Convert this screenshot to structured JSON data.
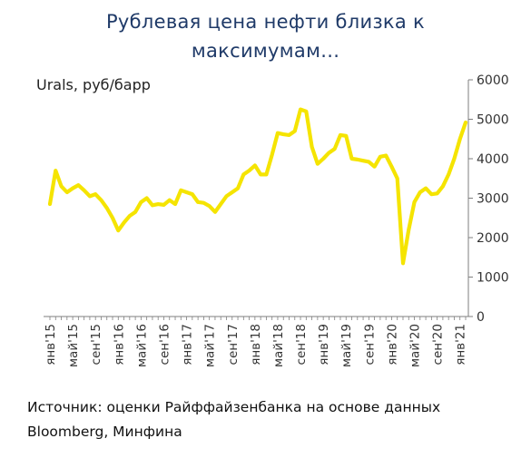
{
  "chart_data": {
    "type": "line",
    "title_lines": [
      "Рублевая цена нефти близка к",
      "максимумам..."
    ],
    "ylabel": "Urals, руб/барр",
    "xlabel": "",
    "ylim": [
      0,
      6000
    ],
    "yticks": [
      0,
      1000,
      2000,
      3000,
      4000,
      5000,
      6000
    ],
    "grid": false,
    "line_color": "#f5e400",
    "x_tick_labels": [
      {
        "index": 0,
        "label": "янв'15"
      },
      {
        "index": 4,
        "label": "май'15"
      },
      {
        "index": 8,
        "label": "сен'15"
      },
      {
        "index": 12,
        "label": "янв'16"
      },
      {
        "index": 16,
        "label": "май'16"
      },
      {
        "index": 20,
        "label": "сен'16"
      },
      {
        "index": 24,
        "label": "янв'17"
      },
      {
        "index": 28,
        "label": "май'17"
      },
      {
        "index": 32,
        "label": "сен'17"
      },
      {
        "index": 36,
        "label": "янв'18"
      },
      {
        "index": 40,
        "label": "май'18"
      },
      {
        "index": 44,
        "label": "сен'18"
      },
      {
        "index": 48,
        "label": "янв'19"
      },
      {
        "index": 52,
        "label": "май'19"
      },
      {
        "index": 56,
        "label": "сен'19"
      },
      {
        "index": 60,
        "label": "янв'20"
      },
      {
        "index": 64,
        "label": "май'20"
      },
      {
        "index": 68,
        "label": "сен'20"
      },
      {
        "index": 72,
        "label": "янв'21"
      }
    ],
    "series": [
      {
        "values": [
          2850,
          3700,
          3300,
          3150,
          3250,
          3330,
          3200,
          3050,
          3100,
          2950,
          2750,
          2500,
          2180,
          2380,
          2550,
          2650,
          2900,
          3000,
          2820,
          2850,
          2830,
          2950,
          2850,
          3200,
          3150,
          3100,
          2900,
          2880,
          2800,
          2650,
          2850,
          3050,
          3150,
          3250,
          3600,
          3700,
          3830,
          3600,
          3600,
          4100,
          4650,
          4620,
          4600,
          4700,
          5250,
          5200,
          4300,
          3870,
          4000,
          4150,
          4250,
          4600,
          4580,
          4000,
          3980,
          3950,
          3920,
          3800,
          4050,
          4080,
          3800,
          3500,
          1350,
          2200,
          2900,
          3150,
          3250,
          3100,
          3120,
          3300,
          3600,
          4000,
          4500,
          4920
        ]
      }
    ]
  },
  "source_lines": [
    "Источник: оценки Райффайзенбанка на основе данных",
    "Bloomberg, Минфина"
  ]
}
